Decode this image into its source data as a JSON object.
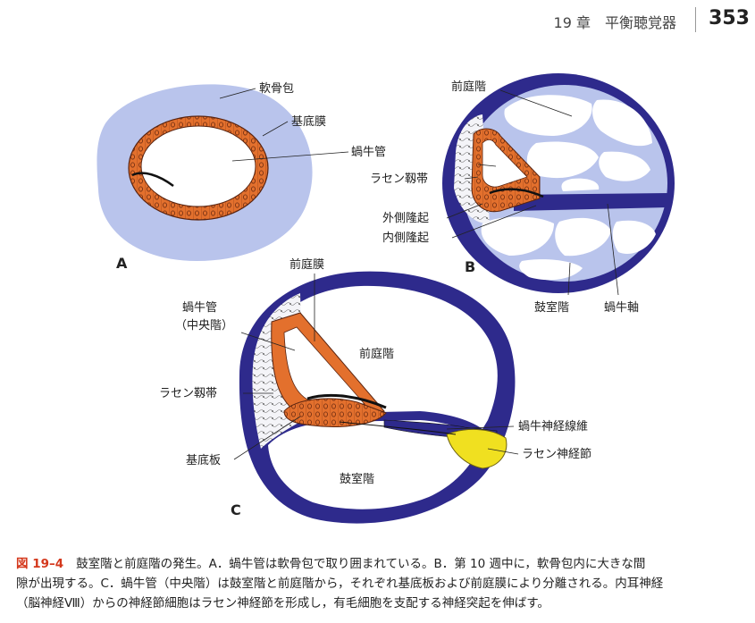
{
  "header": {
    "chapter": "19 章　平衡聴覚器",
    "page_number": "353"
  },
  "figure": {
    "panels": {
      "a": "A",
      "b": "B",
      "c": "C"
    },
    "labels_a": {
      "cartilage": "軟骨包",
      "basilar_membrane": "基底膜",
      "cochlear_duct": "蝸牛管"
    },
    "labels_b": {
      "scala_vestibuli": "前庭階",
      "spiral_ligament": "ラセン靱帯",
      "outer_ridge": "外側隆起",
      "inner_ridge": "内側隆起",
      "scala_tympani": "鼓室階",
      "modiolus": "蝸牛軸"
    },
    "labels_c": {
      "vestibular_membrane": "前庭膜",
      "cochlear_duct_1": "蝸牛管",
      "cochlear_duct_2": "（中央階）",
      "scala_vestibuli": "前庭階",
      "spiral_ligament": "ラセン靱帯",
      "basilar_plate": "基底板",
      "scala_tympani": "鼓室階",
      "nerve_fibers": "蝸牛神経線維",
      "spiral_ganglion": "ラセン神経節"
    },
    "colors": {
      "cartilage": "#b9c4ec",
      "bone": "#2e2a8c",
      "epithelium": "#e3702d",
      "ganglion": "#f0e020"
    }
  },
  "caption": {
    "label": "図 19–4",
    "line1": "鼓室階と前庭階の発生。A．蝸牛管は軟骨包で取り囲まれている。B．第 10 週中に，軟骨包内に大きな間",
    "line2": "隙が出現する。C．蝸牛管（中央階）は鼓室階と前庭階から，それぞれ基底板および前庭膜により分離される。内耳神経",
    "line3": "（脳神経Ⅷ）からの神経節細胞はラセン神経節を形成し，有毛細胞を支配する神経突起を伸ばす。"
  }
}
